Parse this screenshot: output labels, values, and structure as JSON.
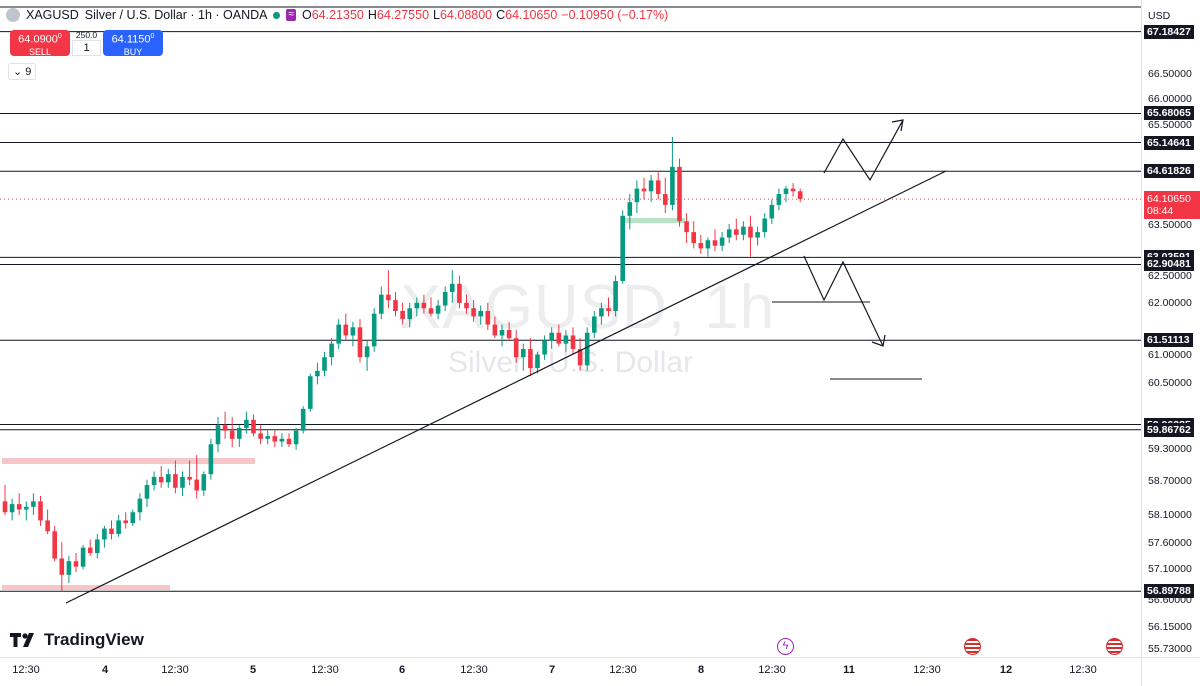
{
  "header": {
    "symbol": "XAGUSD",
    "description": "Silver / U.S. Dollar · 1h · OANDA",
    "ohlc": [
      {
        "label": "O",
        "value": "64.21350"
      },
      {
        "label": "H",
        "value": "64.27550"
      },
      {
        "label": "L",
        "value": "64.08800"
      },
      {
        "label": "C",
        "value": "64.10650"
      },
      {
        "label": "",
        "value": "−0.10950 (−0.17%)"
      }
    ],
    "indicator_count": "9"
  },
  "trade_panel": {
    "sell_price": "64.0900",
    "sell_price_small": "0",
    "sell_label": "SELL",
    "buy_price": "64.1150",
    "buy_price_small": "0",
    "buy_label": "BUY",
    "spread": "250.0",
    "quantity": "1"
  },
  "watermark": {
    "line1": "XAGUSD, 1h",
    "line2": "Silver / U.S. Dollar"
  },
  "logo": {
    "text": "TradingView"
  },
  "price_axis": {
    "currency": "USD",
    "ticks": [
      "66.50000",
      "66.00000",
      "65.50000",
      "63.50000",
      "62.50000",
      "62.00000",
      "61.00000",
      "60.50000",
      "59.30000",
      "58.70000",
      "58.10000",
      "57.60000",
      "57.10000",
      "56.60000",
      "56.15000",
      "55.73000"
    ],
    "levels": [
      "67.18427",
      "65.68065",
      "65.14641",
      "64.61826",
      "63.03591",
      "62.90481",
      "61.51113",
      "59.96285",
      "59.86762",
      "56.89788"
    ],
    "current_price": "64.10650",
    "countdown": "08:44"
  },
  "time_axis": {
    "labels": [
      "12:30",
      "4",
      "12:30",
      "5",
      "12:30",
      "6",
      "12:30",
      "7",
      "12:30",
      "8",
      "12:30",
      "11",
      "12:30",
      "12",
      "12:30"
    ]
  },
  "colors": {
    "up": "#089981",
    "down": "#f23645",
    "line": "#131722",
    "zone": "#f7c5c8",
    "zone_green": "#b7e4c7"
  },
  "chart_data": {
    "type": "candlestick",
    "symbol": "XAGUSD",
    "timeframe": "1h",
    "ylim": [
      55.73,
      67.5
    ],
    "horizontal_levels": [
      67.18427,
      65.68065,
      65.14641,
      64.61826,
      63.03591,
      62.90481,
      61.51113,
      59.96285,
      59.86762,
      56.89788
    ],
    "candles": [
      [
        58.55,
        58.85,
        58.3,
        58.35
      ],
      [
        58.35,
        58.6,
        58.2,
        58.5
      ],
      [
        58.5,
        58.7,
        58.3,
        58.4
      ],
      [
        58.4,
        58.55,
        58.2,
        58.45
      ],
      [
        58.45,
        58.7,
        58.3,
        58.55
      ],
      [
        58.55,
        58.65,
        58.1,
        58.2
      ],
      [
        58.2,
        58.4,
        57.95,
        58.0
      ],
      [
        58.0,
        58.1,
        57.45,
        57.5
      ],
      [
        57.5,
        57.8,
        56.9,
        57.2
      ],
      [
        57.2,
        57.55,
        57.05,
        57.45
      ],
      [
        57.45,
        57.6,
        57.25,
        57.35
      ],
      [
        57.35,
        57.75,
        57.3,
        57.7
      ],
      [
        57.7,
        57.85,
        57.55,
        57.6
      ],
      [
        57.6,
        57.95,
        57.5,
        57.85
      ],
      [
        57.85,
        58.1,
        57.7,
        58.05
      ],
      [
        58.05,
        58.2,
        57.85,
        57.95
      ],
      [
        57.95,
        58.3,
        57.9,
        58.2
      ],
      [
        58.2,
        58.35,
        58.05,
        58.15
      ],
      [
        58.15,
        58.4,
        58.1,
        58.35
      ],
      [
        58.35,
        58.7,
        58.2,
        58.6
      ],
      [
        58.6,
        58.95,
        58.45,
        58.85
      ],
      [
        58.85,
        59.1,
        58.75,
        59.0
      ],
      [
        59.0,
        59.2,
        58.8,
        58.9
      ],
      [
        58.9,
        59.15,
        58.8,
        59.05
      ],
      [
        59.05,
        59.3,
        58.7,
        58.8
      ],
      [
        58.8,
        59.1,
        58.65,
        59.0
      ],
      [
        59.0,
        59.3,
        58.85,
        58.95
      ],
      [
        58.95,
        59.4,
        58.6,
        58.75
      ],
      [
        58.75,
        59.1,
        58.65,
        59.05
      ],
      [
        59.05,
        59.7,
        58.95,
        59.6
      ],
      [
        59.6,
        60.1,
        59.45,
        59.95
      ],
      [
        59.95,
        60.2,
        59.7,
        59.85
      ],
      [
        59.85,
        60.1,
        59.55,
        59.7
      ],
      [
        59.7,
        59.95,
        59.55,
        59.9
      ],
      [
        59.9,
        60.2,
        59.8,
        60.05
      ],
      [
        60.05,
        60.15,
        59.75,
        59.8
      ],
      [
        59.8,
        59.95,
        59.6,
        59.7
      ],
      [
        59.7,
        59.85,
        59.6,
        59.75
      ],
      [
        59.75,
        59.85,
        59.55,
        59.65
      ],
      [
        59.65,
        59.8,
        59.55,
        59.7
      ],
      [
        59.7,
        59.8,
        59.55,
        59.6
      ],
      [
        59.6,
        59.9,
        59.5,
        59.85
      ],
      [
        59.85,
        60.3,
        59.8,
        60.25
      ],
      [
        60.25,
        60.9,
        60.2,
        60.85
      ],
      [
        60.85,
        61.1,
        60.7,
        60.95
      ],
      [
        60.95,
        61.3,
        60.85,
        61.2
      ],
      [
        61.2,
        61.55,
        61.05,
        61.45
      ],
      [
        61.45,
        61.9,
        61.35,
        61.8
      ],
      [
        61.8,
        62.0,
        61.5,
        61.6
      ],
      [
        61.6,
        61.85,
        61.4,
        61.75
      ],
      [
        61.75,
        61.9,
        61.1,
        61.2
      ],
      [
        61.2,
        61.5,
        60.95,
        61.4
      ],
      [
        61.4,
        62.1,
        61.3,
        62.0
      ],
      [
        62.0,
        62.5,
        61.9,
        62.35
      ],
      [
        62.35,
        62.8,
        62.1,
        62.25
      ],
      [
        62.25,
        62.4,
        61.95,
        62.05
      ],
      [
        62.05,
        62.2,
        61.8,
        61.9
      ],
      [
        61.9,
        62.2,
        61.75,
        62.1
      ],
      [
        62.1,
        62.3,
        61.95,
        62.2
      ],
      [
        62.2,
        62.35,
        62.0,
        62.1
      ],
      [
        62.1,
        62.3,
        61.95,
        62.0
      ],
      [
        62.0,
        62.25,
        61.9,
        62.15
      ],
      [
        62.15,
        62.5,
        62.05,
        62.4
      ],
      [
        62.4,
        62.8,
        62.2,
        62.55
      ],
      [
        62.55,
        62.7,
        62.1,
        62.2
      ],
      [
        62.2,
        62.35,
        62.0,
        62.1
      ],
      [
        62.1,
        62.25,
        61.85,
        61.95
      ],
      [
        61.95,
        62.15,
        61.8,
        62.05
      ],
      [
        62.05,
        62.2,
        61.7,
        61.8
      ],
      [
        61.8,
        61.95,
        61.55,
        61.6
      ],
      [
        61.6,
        61.8,
        61.4,
        61.7
      ],
      [
        61.7,
        61.85,
        61.5,
        61.55
      ],
      [
        61.55,
        61.7,
        61.1,
        61.2
      ],
      [
        61.2,
        61.45,
        60.95,
        61.35
      ],
      [
        61.35,
        61.55,
        60.85,
        61.0
      ],
      [
        61.0,
        61.3,
        60.9,
        61.25
      ],
      [
        61.25,
        61.6,
        61.15,
        61.5
      ],
      [
        61.5,
        61.75,
        61.35,
        61.65
      ],
      [
        61.65,
        61.8,
        61.4,
        61.45
      ],
      [
        61.45,
        61.7,
        61.3,
        61.6
      ],
      [
        61.6,
        61.75,
        61.25,
        61.35
      ],
      [
        61.35,
        61.55,
        60.95,
        61.05
      ],
      [
        61.05,
        61.75,
        60.95,
        61.65
      ],
      [
        61.65,
        62.05,
        61.55,
        61.95
      ],
      [
        61.95,
        62.2,
        61.8,
        62.1
      ],
      [
        62.1,
        62.3,
        61.95,
        62.05
      ],
      [
        62.05,
        62.7,
        61.95,
        62.6
      ],
      [
        62.6,
        63.9,
        62.55,
        63.8
      ],
      [
        63.8,
        64.2,
        63.55,
        64.05
      ],
      [
        64.05,
        64.45,
        63.85,
        64.3
      ],
      [
        64.3,
        64.5,
        64.1,
        64.25
      ],
      [
        64.25,
        64.55,
        64.05,
        64.45
      ],
      [
        64.45,
        64.6,
        64.1,
        64.2
      ],
      [
        64.2,
        64.5,
        63.85,
        64.0
      ],
      [
        64.0,
        65.25,
        63.9,
        64.7
      ],
      [
        64.7,
        64.85,
        63.6,
        63.7
      ],
      [
        63.7,
        63.85,
        63.3,
        63.5
      ],
      [
        63.5,
        63.7,
        63.2,
        63.3
      ],
      [
        63.3,
        63.45,
        63.1,
        63.2
      ],
      [
        63.2,
        63.4,
        63.05,
        63.35
      ],
      [
        63.35,
        63.55,
        63.15,
        63.25
      ],
      [
        63.25,
        63.5,
        63.15,
        63.4
      ],
      [
        63.4,
        63.65,
        63.3,
        63.55
      ],
      [
        63.55,
        63.75,
        63.35,
        63.45
      ],
      [
        63.45,
        63.7,
        63.35,
        63.6
      ],
      [
        63.6,
        63.8,
        63.05,
        63.4
      ],
      [
        63.4,
        63.6,
        63.25,
        63.5
      ],
      [
        63.5,
        63.85,
        63.4,
        63.75
      ],
      [
        63.75,
        64.1,
        63.65,
        64.0
      ],
      [
        64.0,
        64.3,
        63.9,
        64.2
      ],
      [
        64.2,
        64.35,
        64.05,
        64.3
      ],
      [
        64.3,
        64.4,
        64.15,
        64.25
      ],
      [
        64.25,
        64.3,
        64.05,
        64.11
      ]
    ]
  }
}
